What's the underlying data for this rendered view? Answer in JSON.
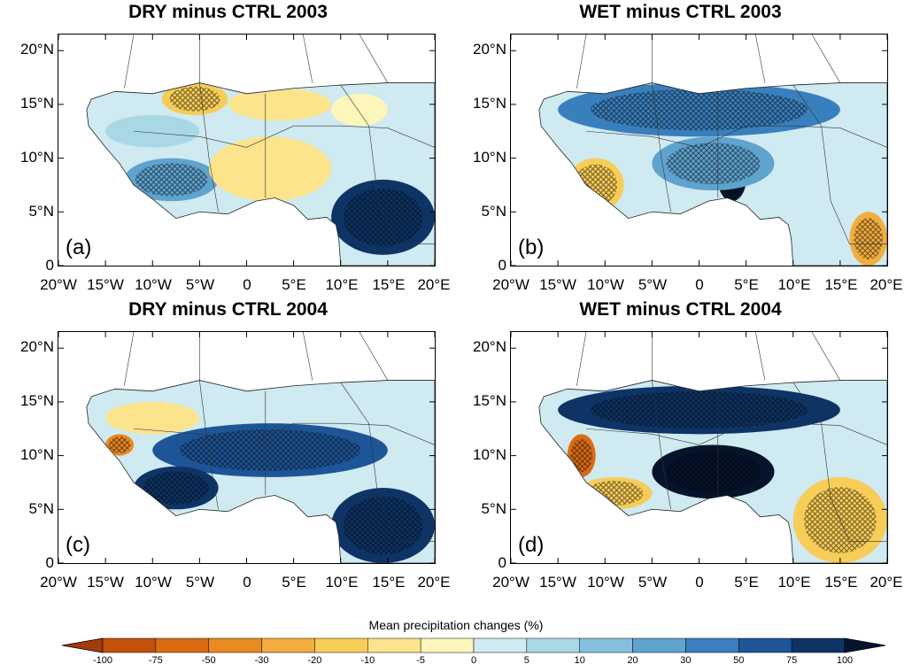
{
  "chart_data": [
    {
      "type": "heatmap",
      "panel": "a",
      "title": "DRY minus CTRL 2003",
      "label": "(a)",
      "x_ticks": [
        "20°W",
        "15°W",
        "10°W",
        "5°W",
        "0",
        "5°E",
        "10°E",
        "15°E",
        "20°E"
      ],
      "y_ticks": [
        "20°N",
        "15°N",
        "10°N",
        "5°N",
        "0"
      ],
      "xlim": [
        -20,
        20
      ],
      "ylim": [
        0,
        21.5
      ],
      "regions": [
        {
          "lon": [
            -9,
            -2
          ],
          "lat": [
            14,
            17
          ],
          "value": -20
        },
        {
          "lon": [
            -2,
            9
          ],
          "lat": [
            13.5,
            16.5
          ],
          "value": -10
        },
        {
          "lon": [
            9,
            15
          ],
          "lat": [
            13,
            16
          ],
          "value": -5
        },
        {
          "lon": [
            -15,
            -5
          ],
          "lat": [
            11,
            14
          ],
          "value": 5
        },
        {
          "lon": [
            -13,
            -3
          ],
          "lat": [
            6,
            10
          ],
          "value": 20
        },
        {
          "lon": [
            9,
            20
          ],
          "lat": [
            1,
            8
          ],
          "value": 75
        },
        {
          "lon": [
            -4,
            9
          ],
          "lat": [
            6,
            12
          ],
          "value": -10
        }
      ]
    },
    {
      "type": "heatmap",
      "panel": "b",
      "title": "WET minus CTRL 2003",
      "label": "(b)",
      "x_ticks": [
        "20°W",
        "15°W",
        "10°W",
        "5°W",
        "0",
        "5°E",
        "10°E",
        "15°E",
        "20°E"
      ],
      "y_ticks": [
        "20°N",
        "15°N",
        "10°N",
        "5°N",
        "0"
      ],
      "xlim": [
        -20,
        20
      ],
      "ylim": [
        0,
        21.5
      ],
      "regions": [
        {
          "lon": [
            -15,
            15
          ],
          "lat": [
            12,
            17
          ],
          "value": 30
        },
        {
          "lon": [
            -14,
            -8
          ],
          "lat": [
            5,
            10
          ],
          "value": -20
        },
        {
          "lon": [
            2,
            5
          ],
          "lat": [
            6,
            10
          ],
          "value": 100
        },
        {
          "lon": [
            16,
            20
          ],
          "lat": [
            0,
            5
          ],
          "value": -30
        },
        {
          "lon": [
            -5,
            8
          ],
          "lat": [
            7,
            12
          ],
          "value": 20
        }
      ]
    },
    {
      "type": "heatmap",
      "panel": "c",
      "title": "DRY minus CTRL 2004",
      "label": "(c)",
      "x_ticks": [
        "20°W",
        "15°W",
        "10°W",
        "5°W",
        "0",
        "5°E",
        "10°E",
        "15°E",
        "20°E"
      ],
      "y_ticks": [
        "20°N",
        "15°N",
        "10°N",
        "5°N",
        "0"
      ],
      "xlim": [
        -20,
        20
      ],
      "ylim": [
        0,
        21.5
      ],
      "regions": [
        {
          "lon": [
            -15,
            -5
          ],
          "lat": [
            12,
            15
          ],
          "value": -10
        },
        {
          "lon": [
            -15,
            -12
          ],
          "lat": [
            10,
            12
          ],
          "value": -50
        },
        {
          "lon": [
            -10,
            15
          ],
          "lat": [
            8,
            13
          ],
          "value": 50
        },
        {
          "lon": [
            -12,
            -3
          ],
          "lat": [
            5,
            9
          ],
          "value": 75
        },
        {
          "lon": [
            9,
            20
          ],
          "lat": [
            0,
            7
          ],
          "value": 75
        }
      ]
    },
    {
      "type": "heatmap",
      "panel": "d",
      "title": "WET minus CTRL 2004",
      "label": "(d)",
      "x_ticks": [
        "20°W",
        "15°W",
        "10°W",
        "5°W",
        "0",
        "5°E",
        "10°E",
        "15°E",
        "20°E"
      ],
      "y_ticks": [
        "20°N",
        "15°N",
        "10°N",
        "5°N",
        "0"
      ],
      "xlim": [
        -20,
        20
      ],
      "ylim": [
        0,
        21.5
      ],
      "regions": [
        {
          "lon": [
            -15,
            15
          ],
          "lat": [
            12,
            16.5
          ],
          "value": 75
        },
        {
          "lon": [
            -14,
            -11
          ],
          "lat": [
            8,
            12
          ],
          "value": -75
        },
        {
          "lon": [
            -13,
            -5
          ],
          "lat": [
            5,
            8
          ],
          "value": -20
        },
        {
          "lon": [
            -5,
            8
          ],
          "lat": [
            6,
            11
          ],
          "value": 100
        },
        {
          "lon": [
            10,
            20
          ],
          "lat": [
            0,
            8
          ],
          "value": -20
        }
      ]
    }
  ],
  "colorbar": {
    "title": "Mean precipitation changes (%)",
    "labels": [
      "-100",
      "-75",
      "-50",
      "-30",
      "-20",
      "-10",
      "-5",
      "0",
      "5",
      "10",
      "20",
      "30",
      "50",
      "75",
      "100"
    ],
    "colors": [
      "#a33a0b",
      "#c3510c",
      "#db6b13",
      "#ea8a22",
      "#f2ad3f",
      "#f7cd58",
      "#fbe48c",
      "#fdf6bb",
      "#cfeaf0",
      "#a8d8e6",
      "#84c1dd",
      "#5fa3cf",
      "#3a7fbd",
      "#1d5597",
      "#0e3466",
      "#05142b"
    ]
  }
}
